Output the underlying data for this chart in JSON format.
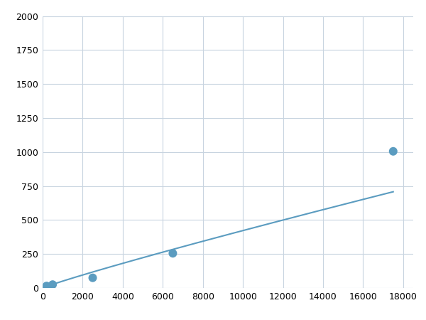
{
  "x": [
    200,
    500,
    2500,
    6500,
    17500
  ],
  "y": [
    15,
    25,
    75,
    255,
    1005
  ],
  "line_color": "#5b9cc0",
  "marker_color": "#5b9cc0",
  "marker_size": 5,
  "xlim": [
    0,
    18500
  ],
  "ylim": [
    0,
    2000
  ],
  "xticks": [
    0,
    2000,
    4000,
    6000,
    8000,
    10000,
    12000,
    14000,
    16000,
    18000
  ],
  "yticks": [
    0,
    250,
    500,
    750,
    1000,
    1250,
    1500,
    1750,
    2000
  ],
  "grid_color": "#c8d4e0",
  "background_color": "#ffffff",
  "tick_fontsize": 9,
  "line_width": 1.5
}
